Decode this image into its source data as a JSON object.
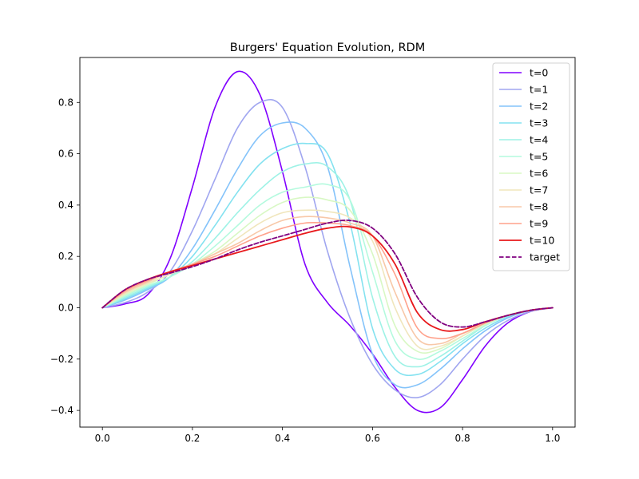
{
  "chart_data": {
    "type": "line",
    "title": "Burgers' Equation Evolution, RDM",
    "xlabel": "",
    "ylabel": "",
    "xlim": [
      -0.05,
      1.05
    ],
    "ylim": [
      -0.465,
      0.975
    ],
    "xticks": [
      0.0,
      0.2,
      0.4,
      0.6,
      0.8,
      1.0
    ],
    "xtick_labels": [
      "0.0",
      "0.2",
      "0.4",
      "0.6",
      "0.8",
      "1.0"
    ],
    "yticks": [
      -0.4,
      -0.2,
      0.0,
      0.2,
      0.4,
      0.6,
      0.8
    ],
    "ytick_labels": [
      "−0.4",
      "−0.2",
      "0.0",
      "0.2",
      "0.4",
      "0.6",
      "0.8"
    ],
    "grid": false,
    "legend_position": "top-right",
    "x": [
      0.0,
      0.05,
      0.1,
      0.15,
      0.2,
      0.25,
      0.3,
      0.35,
      0.4,
      0.45,
      0.5,
      0.55,
      0.6,
      0.65,
      0.7,
      0.75,
      0.8,
      0.85,
      0.9,
      0.95,
      1.0
    ],
    "series": [
      {
        "name": "t=0",
        "color": "#8000ff",
        "dashed": false,
        "width": 1.6,
        "values": [
          0.0,
          0.015,
          0.05,
          0.19,
          0.47,
          0.78,
          0.92,
          0.83,
          0.53,
          0.17,
          0.02,
          -0.07,
          -0.18,
          -0.31,
          -0.4,
          -0.39,
          -0.28,
          -0.15,
          -0.06,
          -0.015,
          0.0
        ]
      },
      {
        "name": "t=1",
        "color": "#a0a6f0",
        "dashed": false,
        "width": 1.6,
        "values": [
          0.0,
          0.02,
          0.06,
          0.14,
          0.3,
          0.5,
          0.7,
          0.8,
          0.78,
          0.55,
          0.22,
          -0.04,
          -0.22,
          -0.32,
          -0.35,
          -0.3,
          -0.2,
          -0.11,
          -0.05,
          -0.015,
          0.0
        ]
      },
      {
        "name": "t=2",
        "color": "#84c3fa",
        "dashed": false,
        "width": 1.6,
        "values": [
          0.0,
          0.03,
          0.07,
          0.12,
          0.23,
          0.38,
          0.54,
          0.67,
          0.72,
          0.7,
          0.55,
          0.16,
          -0.18,
          -0.3,
          -0.3,
          -0.24,
          -0.16,
          -0.09,
          -0.04,
          -0.01,
          0.0
        ]
      },
      {
        "name": "t=3",
        "color": "#84e2f0",
        "dashed": false,
        "width": 1.6,
        "values": [
          0.0,
          0.035,
          0.075,
          0.12,
          0.2,
          0.32,
          0.45,
          0.56,
          0.62,
          0.64,
          0.6,
          0.33,
          -0.08,
          -0.24,
          -0.26,
          -0.21,
          -0.14,
          -0.08,
          -0.035,
          -0.01,
          0.0
        ]
      },
      {
        "name": "t=4",
        "color": "#9ef2e6",
        "dashed": false,
        "width": 1.6,
        "values": [
          0.0,
          0.04,
          0.08,
          0.12,
          0.18,
          0.27,
          0.37,
          0.46,
          0.53,
          0.56,
          0.55,
          0.42,
          0.04,
          -0.19,
          -0.23,
          -0.19,
          -0.13,
          -0.07,
          -0.03,
          -0.01,
          0.0
        ]
      },
      {
        "name": "t=5",
        "color": "#b4fade",
        "dashed": false,
        "width": 1.6,
        "values": [
          0.0,
          0.045,
          0.085,
          0.12,
          0.17,
          0.24,
          0.32,
          0.4,
          0.45,
          0.47,
          0.48,
          0.42,
          0.14,
          -0.13,
          -0.2,
          -0.17,
          -0.12,
          -0.07,
          -0.03,
          -0.01,
          0.0
        ]
      },
      {
        "name": "t=6",
        "color": "#d8f8c4",
        "dashed": false,
        "width": 1.6,
        "values": [
          0.0,
          0.05,
          0.09,
          0.13,
          0.17,
          0.22,
          0.29,
          0.36,
          0.41,
          0.43,
          0.42,
          0.38,
          0.21,
          -0.07,
          -0.17,
          -0.16,
          -0.11,
          -0.065,
          -0.03,
          -0.01,
          0.0
        ]
      },
      {
        "name": "t=7",
        "color": "#f0e6bc",
        "dashed": false,
        "width": 1.6,
        "values": [
          0.0,
          0.055,
          0.095,
          0.13,
          0.17,
          0.21,
          0.27,
          0.33,
          0.37,
          0.38,
          0.375,
          0.35,
          0.26,
          0.0,
          -0.15,
          -0.15,
          -0.11,
          -0.06,
          -0.03,
          -0.01,
          0.0
        ]
      },
      {
        "name": "t=8",
        "color": "#f8c8a8",
        "dashed": false,
        "width": 1.6,
        "values": [
          0.0,
          0.06,
          0.1,
          0.14,
          0.17,
          0.21,
          0.25,
          0.3,
          0.34,
          0.355,
          0.35,
          0.33,
          0.28,
          0.06,
          -0.12,
          -0.14,
          -0.1,
          -0.06,
          -0.03,
          -0.01,
          0.0
        ]
      },
      {
        "name": "t=9",
        "color": "#ffa28c",
        "dashed": false,
        "width": 1.6,
        "values": [
          0.0,
          0.065,
          0.105,
          0.14,
          0.17,
          0.2,
          0.24,
          0.28,
          0.31,
          0.33,
          0.33,
          0.32,
          0.28,
          0.13,
          -0.08,
          -0.12,
          -0.1,
          -0.06,
          -0.03,
          -0.01,
          0.0
        ]
      },
      {
        "name": "t=10",
        "color": "#e8191c",
        "dashed": false,
        "width": 1.8,
        "values": [
          0.0,
          0.07,
          0.11,
          0.14,
          0.165,
          0.19,
          0.215,
          0.24,
          0.265,
          0.29,
          0.31,
          0.315,
          0.28,
          0.17,
          -0.02,
          -0.085,
          -0.085,
          -0.055,
          -0.03,
          -0.01,
          0.0
        ]
      },
      {
        "name": "target",
        "color": "#800080",
        "dashed": true,
        "width": 1.8,
        "values": [
          0.0,
          0.07,
          0.11,
          0.135,
          0.16,
          0.19,
          0.225,
          0.255,
          0.28,
          0.305,
          0.33,
          0.34,
          0.31,
          0.21,
          0.04,
          -0.055,
          -0.075,
          -0.055,
          -0.03,
          -0.01,
          0.0
        ]
      }
    ]
  }
}
